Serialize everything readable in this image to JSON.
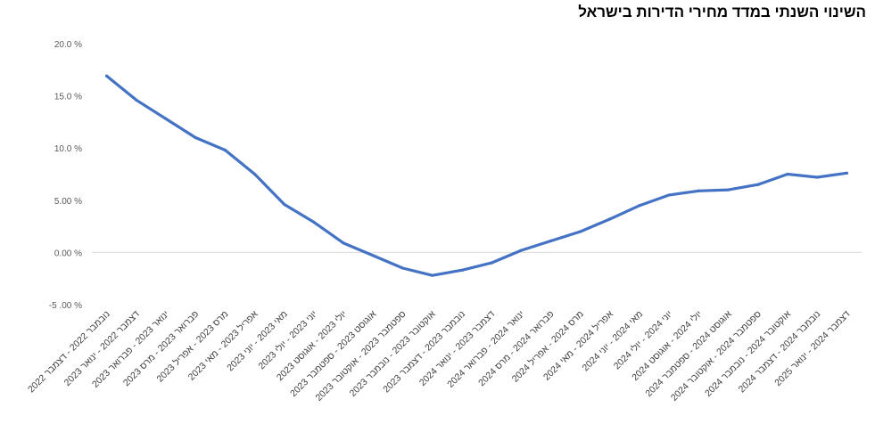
{
  "chart_data": {
    "type": "line",
    "title": "השינוי השנתי במדד מחירי הדירות בישראל",
    "xlabel": "",
    "ylabel": "",
    "ylim": [
      -5,
      20
    ],
    "y_ticks": [
      "20.0 %",
      "15.0 %",
      "10.0 %",
      "5.00 %",
      "0.00 %",
      "-5 .00 %"
    ],
    "grid": "zero-line-only",
    "legend": "none",
    "line_color": "#4472C4",
    "categories": [
      "נובמבר 2022 - דצמבר 2022",
      "דצמבר 2022 - ינואר 2023",
      "ינואר 2023 - פברואר 2023",
      "פברואר 2023 - מרס 2023",
      "מרס 2023 - אפריל 2023",
      "אפריל 2023 - מאי 2023",
      "מאי 2023 - יוני 2023",
      "יוני 2023 - יולי 2023",
      "יולי 2023 - אוגוסט 2023",
      "אוגוסט 2023 - ספטמבר 2023",
      "ספטמבר 2023 - אוקטובר 2023",
      "אוקטובר 2023 - נובמבר 2023",
      "נובמבר 2023 - דצמבר 2023",
      "דצמבר 2023 - ינואר 2024",
      "ינואר 2024 - פברואר 2024",
      "פברואר 2024 - מרס 2024",
      "מרס 2024 - אפריל 2024",
      "אפריל 2024 - מאי 2024",
      "מאי 2024 - יוני 2024",
      "יוני 2024 - יולי 2024",
      "יולי 2024 - אוגוסט 2024",
      "אוגוסט 2024 - ספטמבר 2024",
      "ספטמבר 2024 - אוקטובר 2024",
      "אוקטובר 2024 - נובמבר 2024",
      "נובמבר 2024 - דצמבר 2024",
      "דצמבר 2024 - ינואר 2025"
    ],
    "values": [
      16.9,
      14.6,
      12.8,
      11.0,
      9.8,
      7.5,
      4.6,
      2.9,
      0.9,
      -0.3,
      -1.5,
      -2.2,
      -1.7,
      -1.0,
      0.2,
      1.1,
      2.0,
      3.2,
      4.5,
      5.5,
      5.9,
      6.0,
      6.5,
      7.5,
      7.2,
      7.6
    ]
  }
}
